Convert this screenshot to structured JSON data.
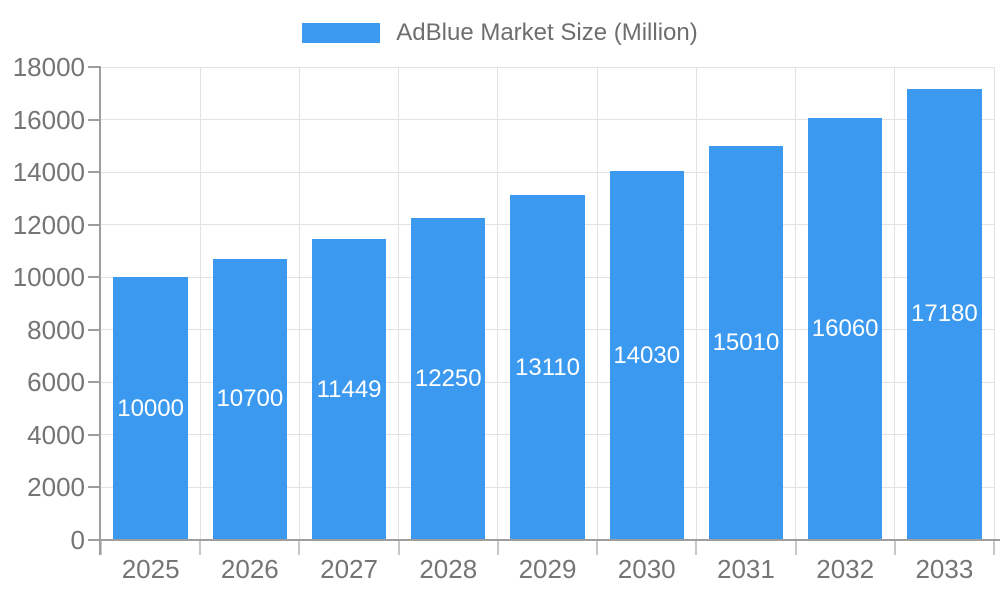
{
  "legend": {
    "items": [
      {
        "label": "AdBlue Market Size (Million)",
        "swatch_color": "#3B99F0"
      }
    ]
  },
  "chart_data": {
    "type": "bar",
    "title": "",
    "xlabel": "",
    "ylabel": "",
    "categories": [
      "2025",
      "2026",
      "2027",
      "2028",
      "2029",
      "2030",
      "2031",
      "2032",
      "2033"
    ],
    "series": [
      {
        "name": "AdBlue Market Size (Million)",
        "color": "#3B99F0",
        "values": [
          10000,
          10700,
          11449,
          12250,
          13110,
          14030,
          15010,
          16060,
          17180
        ]
      }
    ],
    "value_labels": [
      "10000",
      "10700",
      "11449",
      "12250",
      "13110",
      "14030",
      "15010",
      "16060",
      "17180"
    ],
    "value_label_position": "inside-center",
    "ylim": [
      0,
      18000
    ],
    "y_ticks": [
      0,
      2000,
      4000,
      6000,
      8000,
      10000,
      12000,
      14000,
      16000,
      18000
    ],
    "grid": true,
    "legend_position": "top-center"
  },
  "style": {
    "bar_color": "#3B99F0",
    "axis_line_color": "#9e9e9e",
    "gridline_color": "#e2e2e2",
    "x_tick_color": "#c8c8c8",
    "y_tick_color": "#9e9e9e",
    "axis_text_color": "#757575",
    "value_label_color": "#ffffff",
    "legend_text_color": "#6e6e6e",
    "background_color": "#ffffff"
  }
}
